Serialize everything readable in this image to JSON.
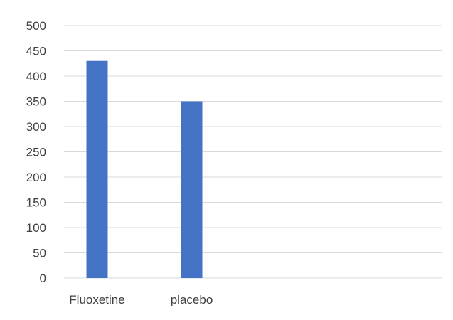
{
  "chart_data": {
    "type": "bar",
    "categories": [
      "Fluoxetine",
      "placebo"
    ],
    "values": [
      430,
      350
    ],
    "ylim": [
      0,
      500
    ],
    "yticks": [
      0,
      50,
      100,
      150,
      200,
      250,
      300,
      350,
      400,
      450,
      500
    ],
    "grid": true,
    "legend": "none",
    "bar_color": "#4472C4",
    "grid_color": "#d9d9d9"
  }
}
